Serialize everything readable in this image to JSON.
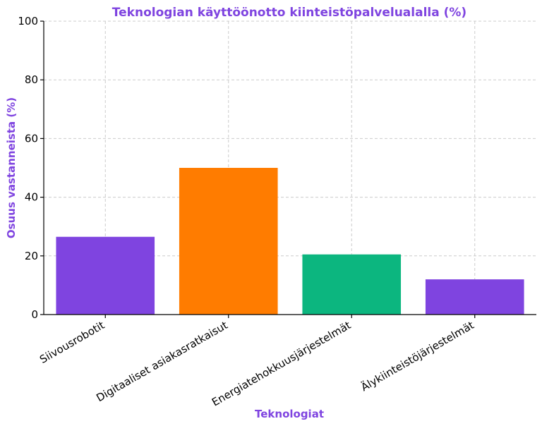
{
  "chart_data": {
    "type": "bar",
    "title": "Teknologian käyttöönotto kiinteistöpalvelualalla (%)",
    "xlabel": "Teknologiat",
    "ylabel": "Osuus vastanneista (%)",
    "categories": [
      "Siivousrobotit",
      "Digitaaliset asiakasratkaisut",
      "Energiatehokkuusjärjestelmät",
      "Älykiinteistöjärjestelmät"
    ],
    "values": [
      26.5,
      50,
      20.5,
      12
    ],
    "colors": [
      "#7f44e0",
      "#ff7c00",
      "#0cb67f",
      "#7f44e0"
    ],
    "ylim": [
      0,
      100
    ],
    "yticks": [
      0,
      20,
      40,
      60,
      80,
      100
    ],
    "grid": true,
    "accent_color": "#7f44e0"
  }
}
